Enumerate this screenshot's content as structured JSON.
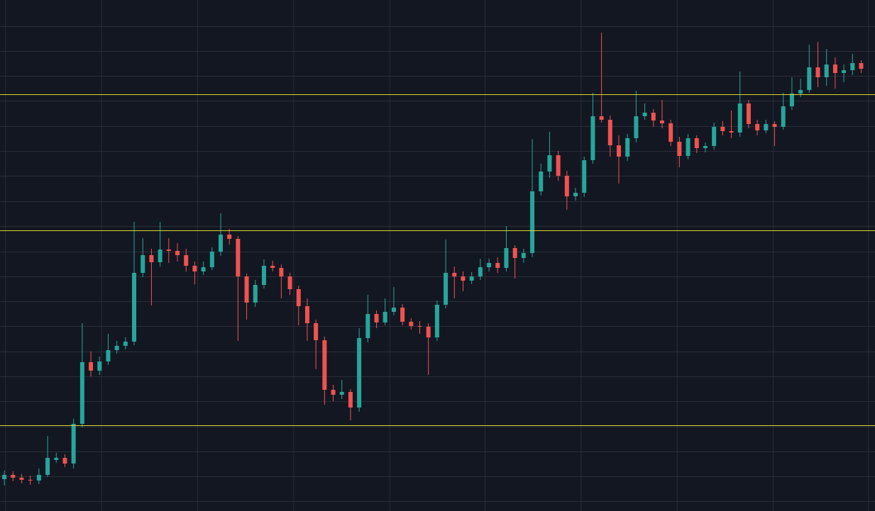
{
  "chart_data": {
    "type": "candlestick",
    "open": [
      45,
      51,
      47,
      44,
      43,
      51,
      72,
      75,
      67,
      123,
      210,
      198,
      211,
      227,
      233,
      239,
      336,
      361,
      351,
      369,
      367,
      361,
      346,
      338,
      344,
      366,
      390,
      384,
      331,
      294,
      319,
      346,
      343,
      331,
      313,
      289,
      265,
      241,
      171,
      164,
      168,
      146,
      244,
      278,
      266,
      281,
      287,
      267,
      261,
      260,
      245,
      291,
      336,
      331,
      325,
      331,
      344,
      350,
      343,
      371,
      357,
      364,
      451,
      479,
      502,
      473,
      444,
      449,
      495,
      557,
      552,
      516,
      500,
      526,
      557,
      562,
      551,
      547,
      521,
      501,
      526,
      512,
      515,
      542,
      536,
      534,
      575,
      546,
      537,
      546,
      542,
      571,
      589,
      594,
      626,
      612,
      630,
      618,
      622,
      632
    ],
    "high": [
      57,
      56,
      52,
      50,
      60,
      106,
      82,
      80,
      130,
      265,
      225,
      218,
      250,
      240,
      245,
      408,
      385,
      370,
      408,
      385,
      378,
      370,
      352,
      352,
      372,
      420,
      398,
      388,
      335,
      326,
      355,
      353,
      348,
      336,
      318,
      300,
      270,
      246,
      178,
      185,
      172,
      258,
      305,
      283,
      300,
      316,
      292,
      272,
      268,
      265,
      297,
      383,
      345,
      338,
      337,
      356,
      356,
      358,
      402,
      375,
      370,
      525,
      490,
      535,
      508,
      480,
      456,
      500,
      590,
      675,
      558,
      530,
      532,
      593,
      575,
      567,
      580,
      552,
      528,
      532,
      530,
      520,
      548,
      550,
      565,
      620,
      580,
      552,
      552,
      550,
      590,
      612,
      610,
      658,
      662,
      652,
      640,
      630,
      645,
      636
    ],
    "low": [
      36,
      42,
      39,
      37,
      38,
      48,
      68,
      62,
      60,
      118,
      190,
      192,
      206,
      222,
      228,
      234,
      330,
      290,
      345,
      350,
      352,
      338,
      320,
      333,
      340,
      360,
      376,
      240,
      270,
      288,
      314,
      338,
      300,
      305,
      262,
      240,
      200,
      150,
      155,
      158,
      128,
      140,
      238,
      258,
      262,
      276,
      262,
      256,
      250,
      192,
      240,
      286,
      300,
      310,
      320,
      326,
      338,
      336,
      338,
      328,
      350,
      358,
      445,
      470,
      466,
      425,
      438,
      443,
      490,
      548,
      500,
      462,
      494,
      520,
      552,
      542,
      540,
      515,
      485,
      496,
      505,
      506,
      510,
      530,
      526,
      528,
      540,
      530,
      533,
      515,
      538,
      566,
      584,
      590,
      598,
      600,
      596,
      605,
      615,
      618
    ],
    "close": [
      51,
      47,
      44,
      43,
      51,
      75,
      75,
      67,
      123,
      210,
      198,
      211,
      227,
      233,
      239,
      336,
      361,
      351,
      369,
      367,
      361,
      346,
      338,
      344,
      366,
      390,
      384,
      331,
      294,
      319,
      346,
      343,
      331,
      313,
      289,
      265,
      241,
      171,
      164,
      168,
      146,
      244,
      278,
      266,
      281,
      287,
      267,
      261,
      260,
      245,
      291,
      336,
      331,
      325,
      331,
      344,
      350,
      343,
      371,
      357,
      364,
      451,
      479,
      502,
      473,
      444,
      449,
      495,
      557,
      552,
      516,
      500,
      526,
      557,
      562,
      551,
      547,
      521,
      501,
      526,
      512,
      515,
      542,
      536,
      534,
      575,
      546,
      537,
      546,
      542,
      571,
      589,
      594,
      626,
      612,
      630,
      618,
      622,
      632,
      624
    ],
    "up_color": "#26a69a",
    "down_color": "#ef5350",
    "levels": [
      588,
      396,
      121
    ],
    "level_color": "#d8d82a",
    "xlim": [
      -0.5,
      100.6
    ],
    "xticks": [
      0.1,
      11.2,
      22.3,
      33.4,
      44.5,
      55.5,
      66.6,
      77.7,
      88.8,
      99.8
    ],
    "ylim": [
      0,
      721
    ],
    "yticks": [
      684,
      649,
      614,
      579,
      543,
      508,
      473,
      437,
      402,
      366,
      331,
      296,
      261,
      225,
      190,
      155,
      119,
      84,
      49,
      14
    ],
    "grid": true
  }
}
